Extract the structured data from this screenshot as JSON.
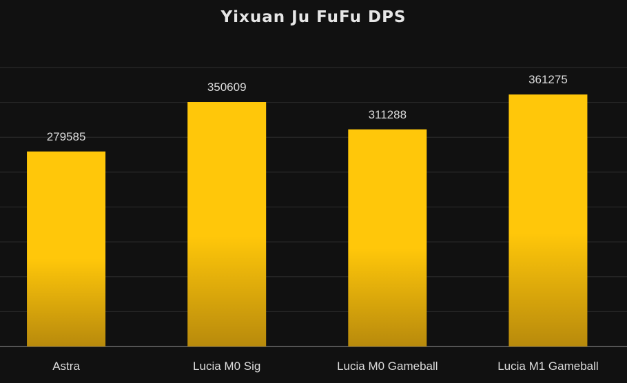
{
  "chart_data": {
    "type": "bar",
    "title": "Yixuan Ju FuFu DPS",
    "categories": [
      "Astra",
      "Lucia M0 Sig",
      "Lucia M0 Gameball",
      "Lucia M1 Gameball"
    ],
    "values": [
      279585,
      350609,
      311288,
      361275
    ],
    "xlabel": "",
    "ylabel": "",
    "ylim": [
      0,
      400000
    ],
    "grid": true,
    "gridline_step": 50000,
    "y_tick_labels_shown": false,
    "data_labels": true,
    "colors": {
      "background": "#111111",
      "bar_top": "#ffc70a",
      "bar_bottom": "#b88a0c",
      "grid": "#2e2e2e",
      "text": "#dcdcdc"
    }
  }
}
